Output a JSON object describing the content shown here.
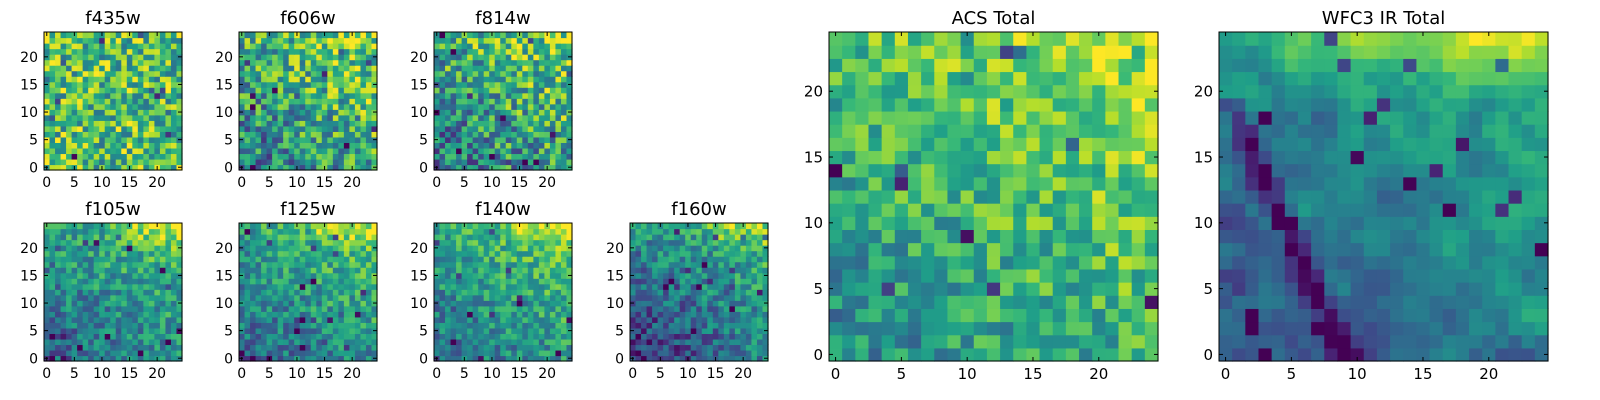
{
  "chart_data": [
    {
      "type": "heatmap",
      "title": "f435w",
      "colormap": "viridis",
      "x_ticks": [
        "0",
        "5",
        "10",
        "15",
        "20"
      ],
      "y_ticks": [
        "0",
        "5",
        "10",
        "15",
        "20"
      ],
      "xlim": [
        0,
        24
      ],
      "ylim": [
        0,
        24
      ],
      "grid": false,
      "pixel_grid": "25x25",
      "gradient": "none",
      "noise": "strong",
      "mean_level": 0.7
    },
    {
      "type": "heatmap",
      "title": "f606w",
      "colormap": "viridis",
      "x_ticks": [
        "0",
        "5",
        "10",
        "15",
        "20"
      ],
      "y_ticks": [
        "0",
        "5",
        "10",
        "15",
        "20"
      ],
      "xlim": [
        0,
        24
      ],
      "ylim": [
        0,
        24
      ],
      "grid": false,
      "pixel_grid": "25x25",
      "gradient": "brighter toward top-right",
      "noise": "strong",
      "mean_level": 0.6
    },
    {
      "type": "heatmap",
      "title": "f814w",
      "colormap": "viridis",
      "x_ticks": [
        "0",
        "5",
        "10",
        "15",
        "20"
      ],
      "y_ticks": [
        "0",
        "5",
        "10",
        "15",
        "20"
      ],
      "xlim": [
        0,
        24
      ],
      "ylim": [
        0,
        24
      ],
      "grid": false,
      "pixel_grid": "25x25",
      "gradient": "brighter toward top-right",
      "noise": "strong",
      "mean_level": 0.58
    },
    {
      "type": "heatmap",
      "title": "f105w",
      "colormap": "viridis",
      "x_ticks": [
        "0",
        "5",
        "10",
        "15",
        "20"
      ],
      "y_ticks": [
        "0",
        "5",
        "10",
        "15",
        "20"
      ],
      "xlim": [
        0,
        24
      ],
      "ylim": [
        0,
        24
      ],
      "grid": false,
      "pixel_grid": "25x25",
      "gradient": "bright band along top-right",
      "noise": "moderate",
      "mean_level": 0.5
    },
    {
      "type": "heatmap",
      "title": "f125w",
      "colormap": "viridis",
      "x_ticks": [
        "0",
        "5",
        "10",
        "15",
        "20"
      ],
      "y_ticks": [
        "0",
        "5",
        "10",
        "15",
        "20"
      ],
      "xlim": [
        0,
        24
      ],
      "ylim": [
        0,
        24
      ],
      "grid": false,
      "pixel_grid": "25x25",
      "gradient": "bright band along top-right",
      "noise": "moderate",
      "mean_level": 0.52
    },
    {
      "type": "heatmap",
      "title": "f140w",
      "colormap": "viridis",
      "x_ticks": [
        "0",
        "5",
        "10",
        "15",
        "20"
      ],
      "y_ticks": [
        "0",
        "5",
        "10",
        "15",
        "20"
      ],
      "xlim": [
        0,
        24
      ],
      "ylim": [
        0,
        24
      ],
      "grid": false,
      "pixel_grid": "25x25",
      "gradient": "bright band along top-right",
      "noise": "moderate",
      "mean_level": 0.55
    },
    {
      "type": "heatmap",
      "title": "f160w",
      "colormap": "viridis",
      "x_ticks": [
        "0",
        "5",
        "10",
        "15",
        "20"
      ],
      "y_ticks": [
        "0",
        "5",
        "10",
        "15",
        "20"
      ],
      "xlim": [
        0,
        24
      ],
      "ylim": [
        0,
        24
      ],
      "grid": false,
      "pixel_grid": "25x25",
      "gradient": "bright band along top-right, dark lower-left",
      "noise": "moderate",
      "mean_level": 0.45
    },
    {
      "type": "heatmap",
      "title": "ACS Total",
      "colormap": "viridis",
      "x_ticks": [
        "0",
        "5",
        "10",
        "15",
        "20"
      ],
      "y_ticks": [
        "0",
        "5",
        "10",
        "15",
        "20"
      ],
      "xlim": [
        0,
        24
      ],
      "ylim": [
        0,
        24
      ],
      "grid": false,
      "pixel_grid": "25x25",
      "gradient": "brighter toward top-right",
      "noise": "moderate",
      "mean_level": 0.66
    },
    {
      "type": "heatmap",
      "title": "WFC3 IR Total",
      "colormap": "viridis",
      "x_ticks": [
        "0",
        "5",
        "10",
        "15",
        "20"
      ],
      "y_ticks": [
        "0",
        "5",
        "10",
        "15",
        "20"
      ],
      "xlim": [
        0,
        24
      ],
      "ylim": [
        0,
        24
      ],
      "grid": false,
      "pixel_grid": "25x25",
      "gradient": "bright top-right, dark diagonal streak lower-left",
      "noise": "smooth",
      "mean_level": 0.42
    }
  ]
}
